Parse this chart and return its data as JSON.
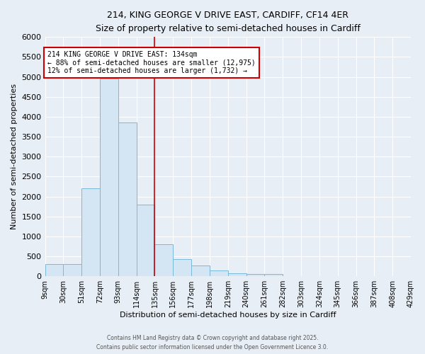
{
  "title_line1": "214, KING GEORGE V DRIVE EAST, CARDIFF, CF14 4ER",
  "title_line2": "Size of property relative to semi-detached houses in Cardiff",
  "xlabel": "Distribution of semi-detached houses by size in Cardiff",
  "ylabel": "Number of semi-detached properties",
  "bins": [
    9,
    30,
    51,
    72,
    93,
    114,
    135,
    156,
    177,
    198,
    219,
    240,
    261,
    282,
    303,
    324,
    345,
    366,
    387,
    408,
    429
  ],
  "counts": [
    300,
    300,
    2200,
    4950,
    3850,
    1800,
    800,
    430,
    270,
    150,
    80,
    60,
    50,
    0,
    0,
    0,
    0,
    0,
    0,
    0
  ],
  "bar_facecolor": "#d4e6f4",
  "bar_edgecolor": "#7ab8d9",
  "vline_x": 135,
  "vline_color": "#cc0000",
  "annotation_title": "214 KING GEORGE V DRIVE EAST: 134sqm",
  "annotation_line2": "← 88% of semi-detached houses are smaller (12,975)",
  "annotation_line3": "12% of semi-detached houses are larger (1,732) →",
  "annotation_box_color": "#cc0000",
  "annotation_bg": "#ffffff",
  "ylim": [
    0,
    6000
  ],
  "xlim": [
    9,
    429
  ],
  "yticks": [
    0,
    500,
    1000,
    1500,
    2000,
    2500,
    3000,
    3500,
    4000,
    4500,
    5000,
    5500,
    6000
  ],
  "background_color": "#e8eef5",
  "grid_color": "#ffffff",
  "footer1": "Contains HM Land Registry data © Crown copyright and database right 2025.",
  "footer2": "Contains public sector information licensed under the Open Government Licence 3.0."
}
